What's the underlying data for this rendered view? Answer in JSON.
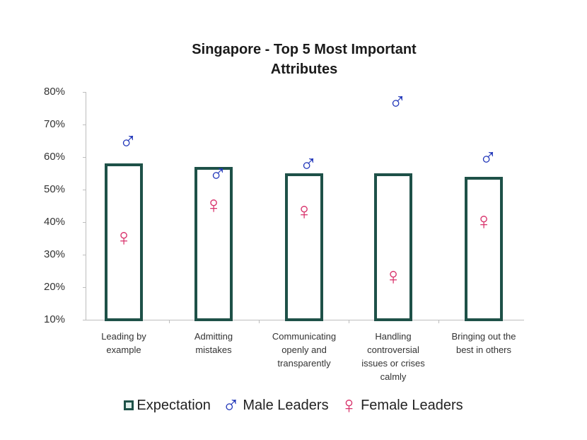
{
  "chart_data": {
    "type": "bar",
    "title": "Singapore - Top 5 Most Important Attributes",
    "xlabel": "",
    "ylabel": "",
    "ylim": [
      0.1,
      0.8
    ],
    "yticks": [
      "80%",
      "70%",
      "60%",
      "50%",
      "40%",
      "30%",
      "20%",
      "10%"
    ],
    "grid": false,
    "legend_position": "bottom",
    "categories": [
      "Leading by example",
      "Admitting mistakes",
      "Communicating openly and transparently",
      "Handling controversial issues or crises calmly",
      "Bringing out the best in others"
    ],
    "series": [
      {
        "name": "Expectation",
        "style": "hollow-bar",
        "color": "#1e5148",
        "values": [
          0.58,
          0.57,
          0.55,
          0.55,
          0.54
        ]
      },
      {
        "name": "Male Leaders",
        "style": "marker-male-symbol",
        "color": "#1d33b8",
        "values": [
          0.64,
          0.54,
          0.57,
          0.76,
          0.59
        ]
      },
      {
        "name": "Female Leaders",
        "style": "marker-female-symbol",
        "color": "#d8326b",
        "values": [
          0.37,
          0.47,
          0.45,
          0.25,
          0.42
        ]
      }
    ]
  },
  "title_line1": "Singapore - Top 5 Most Important",
  "title_line2": "Attributes",
  "y_axis": [
    "80%",
    "70%",
    "60%",
    "50%",
    "40%",
    "30%",
    "20%",
    "10%"
  ],
  "x_labels": [
    [
      "Leading by",
      "example"
    ],
    [
      "Admitting",
      "mistakes"
    ],
    [
      "Communicating",
      "openly and",
      "transparently"
    ],
    [
      "Handling",
      "controversial",
      "issues or crises",
      "calmly"
    ],
    [
      "Bringing out the",
      "best in others"
    ]
  ],
  "legend": {
    "expectation": "Expectation",
    "male": "Male Leaders",
    "female": "Female Leaders",
    "male_symbol": "♂",
    "female_symbol": "♀"
  },
  "icons": {
    "male": "male-symbol-icon",
    "female": "female-symbol-icon"
  }
}
